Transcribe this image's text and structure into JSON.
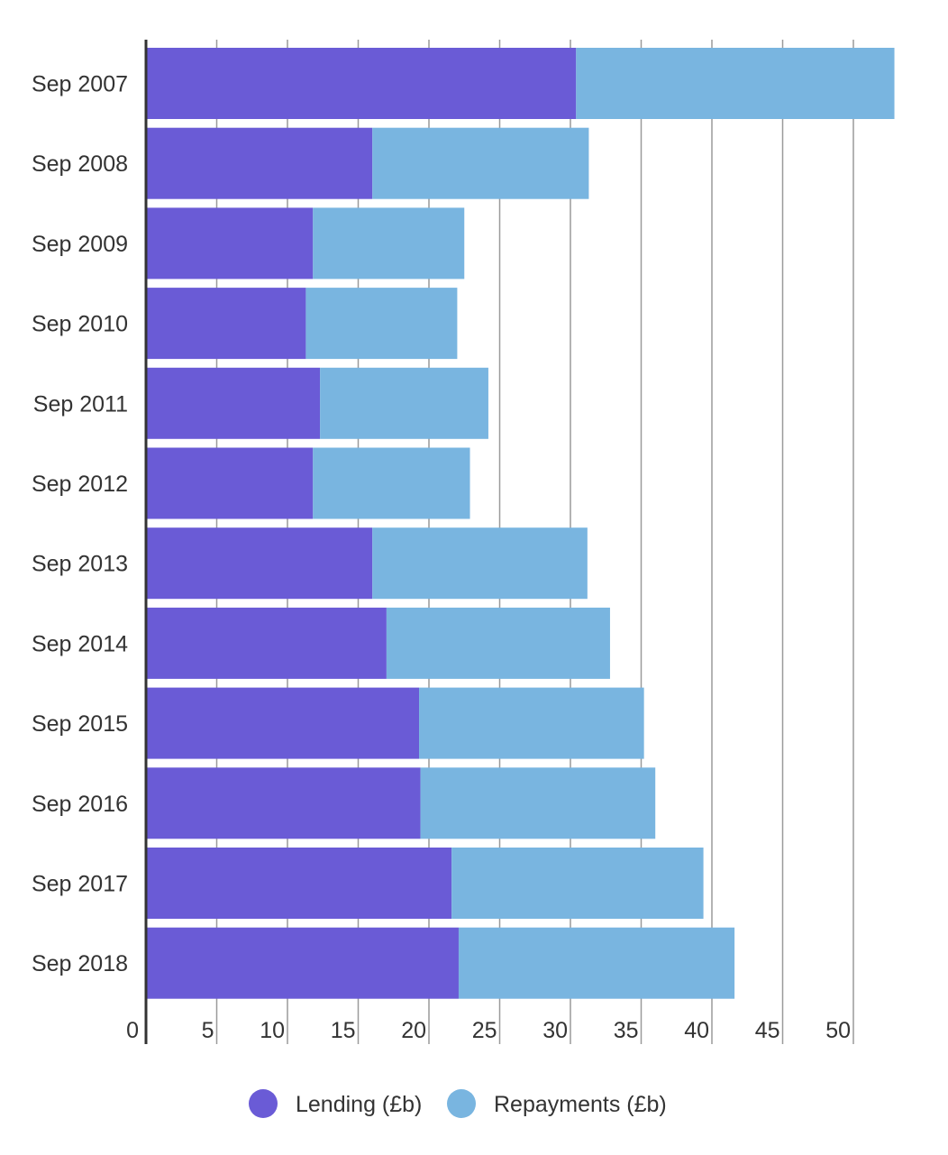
{
  "chart_data": {
    "type": "bar",
    "orientation": "horizontal",
    "stacked": true,
    "categories": [
      "Sep 2007",
      "Sep 2008",
      "Sep 2009",
      "Sep 2010",
      "Sep 2011",
      "Sep 2012",
      "Sep 2013",
      "Sep 2014",
      "Sep 2015",
      "Sep 2016",
      "Sep 2017",
      "Sep 2018"
    ],
    "series": [
      {
        "name": "Lending (£b)",
        "color": "#6A5BD6",
        "values": [
          30.4,
          16.0,
          11.8,
          11.3,
          12.3,
          11.8,
          16.0,
          17.0,
          19.3,
          19.4,
          21.6,
          22.1
        ]
      },
      {
        "name": "Repayments (£b)",
        "color": "#79B5E0",
        "values": [
          22.5,
          15.3,
          10.7,
          10.7,
          11.9,
          11.1,
          15.2,
          15.8,
          15.9,
          16.6,
          17.8,
          19.5
        ]
      }
    ],
    "xlim": [
      0,
      53
    ],
    "xticks": [
      0,
      5,
      10,
      15,
      20,
      25,
      30,
      35,
      40,
      45,
      50
    ],
    "grid": true,
    "legend_position": "bottom-center",
    "title": "",
    "xlabel": "",
    "ylabel": ""
  }
}
